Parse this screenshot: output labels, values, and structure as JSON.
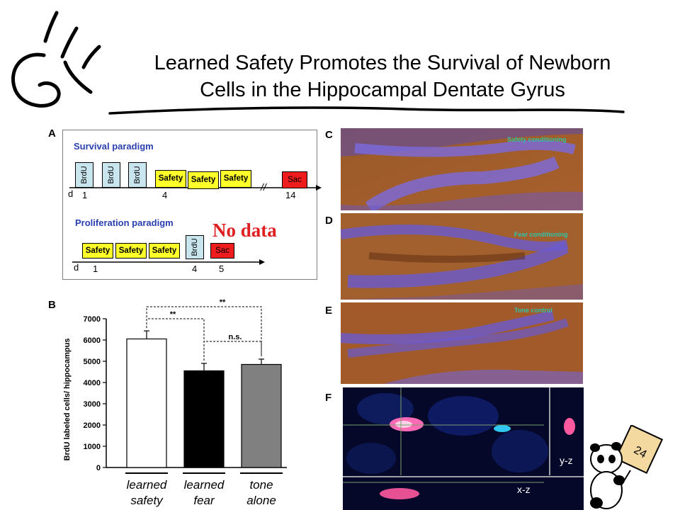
{
  "slide": {
    "title_line1": "Learned Safety Promotes the Survival of Newborn",
    "title_line2": "Cells in the Hippocampal Dentate Gyrus",
    "page_number": "24",
    "no_data_label": "No data"
  },
  "panelA": {
    "letter": "A",
    "survival": {
      "title": "Survival paradigm",
      "brdu_labels": [
        "BrdU",
        "BrdU",
        "BrdU"
      ],
      "safety_labels": [
        "Safety",
        "Safety",
        "Safety"
      ],
      "sac_label": "Sac",
      "day_prefix": "d",
      "day_ticks": [
        "1",
        "4",
        "14"
      ],
      "break_mark": "//"
    },
    "proliferation": {
      "title": "Proliferation paradigm",
      "safety_labels": [
        "Safety",
        "Safety",
        "Safety"
      ],
      "brdu_label": "BrdU",
      "sac_label": "Sac",
      "day_prefix": "d",
      "day_ticks": [
        "1",
        "4",
        "5"
      ]
    }
  },
  "panelB": {
    "letter": "B",
    "sig_labels": [
      "**",
      "**",
      "n.s."
    ]
  },
  "chart_data": {
    "type": "bar",
    "categories": [
      "learned safety",
      "learned fear",
      "tone alone"
    ],
    "category_lines": [
      [
        "learned",
        "safety"
      ],
      [
        "learned",
        "fear"
      ],
      [
        "tone",
        "alone"
      ]
    ],
    "values": [
      6050,
      4550,
      4850
    ],
    "errors": [
      380,
      350,
      250
    ],
    "bar_colors": [
      "#ffffff",
      "#000000",
      "#808080"
    ],
    "ylabel": "BrdU labeled cells/ hippocampus",
    "xlabel": "",
    "ylim": [
      0,
      7000
    ],
    "yticks": [
      "0",
      "1000",
      "2000",
      "3000",
      "4000",
      "5000",
      "6000",
      "7000"
    ],
    "grid": false,
    "comparisons": [
      {
        "from": "learned safety",
        "to": "learned fear",
        "label": "**"
      },
      {
        "from": "learned safety",
        "to": "tone alone",
        "label": "**"
      },
      {
        "from": "learned fear",
        "to": "tone alone",
        "label": "n.s."
      }
    ]
  },
  "micrographs": {
    "C": {
      "letter": "C",
      "label": "Safety conditioning"
    },
    "D": {
      "letter": "D",
      "label": "Fear conditioning"
    },
    "E": {
      "letter": "E",
      "label": "Tone control"
    },
    "F": {
      "letter": "F",
      "label_yz": "y-z",
      "label_xz": "x-z"
    }
  },
  "colors": {
    "brdu_box": "#c9e6ef",
    "safety_box": "#ffff2a",
    "sac_box": "#ee1c1c",
    "paradigm_title": "#2a3fb0",
    "no_data": "#e02020",
    "micrograph_label": "#2ec4a8"
  }
}
